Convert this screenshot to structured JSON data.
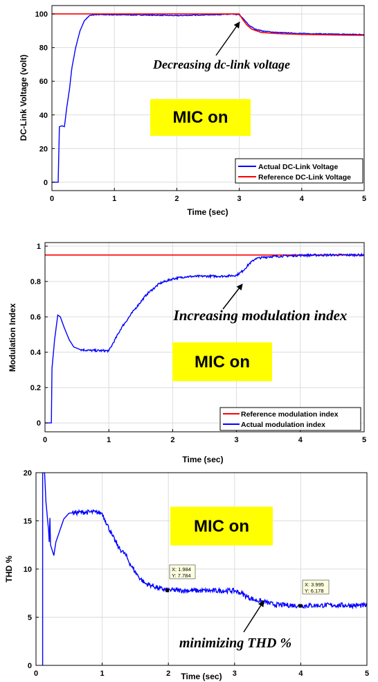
{
  "chart_data": [
    {
      "type": "line",
      "xlabel": "Time (sec)",
      "ylabel": "DC-Link Voltage (volt)",
      "xlim": [
        0,
        5
      ],
      "ylim": [
        -5,
        105
      ],
      "xticks": [
        0,
        1,
        2,
        3,
        4,
        5
      ],
      "yticks": [
        0,
        20,
        40,
        60,
        80,
        100
      ],
      "grid": true,
      "legend_position": "bottom-right",
      "series": [
        {
          "name": "Actual DC-Link Voltage",
          "color": "#0000ff",
          "points": [
            [
              0,
              0
            ],
            [
              0.1,
              0
            ],
            [
              0.12,
              33
            ],
            [
              0.16,
              33.5
            ],
            [
              0.2,
              33
            ],
            [
              0.24,
              45
            ],
            [
              0.28,
              55
            ],
            [
              0.32,
              68
            ],
            [
              0.38,
              80
            ],
            [
              0.45,
              90
            ],
            [
              0.52,
              96
            ],
            [
              0.6,
              99
            ],
            [
              0.7,
              99.6
            ],
            [
              1.0,
              99.5
            ],
            [
              1.5,
              99.4
            ],
            [
              2.0,
              99
            ],
            [
              2.5,
              99.5
            ],
            [
              2.9,
              99.8
            ],
            [
              3.0,
              99.5
            ],
            [
              3.08,
              96.5
            ],
            [
              3.15,
              93.5
            ],
            [
              3.25,
              91
            ],
            [
              3.4,
              89.7
            ],
            [
              3.6,
              89
            ],
            [
              4.0,
              88.4
            ],
            [
              4.5,
              88
            ],
            [
              5.0,
              87.8
            ]
          ]
        },
        {
          "name": "Reference DC-Link Voltage",
          "color": "#ff0000",
          "points": [
            [
              0,
              100
            ],
            [
              3.0,
              100
            ],
            [
              3.05,
              97
            ],
            [
              3.12,
              93.5
            ],
            [
              3.2,
              91
            ],
            [
              3.35,
              89
            ],
            [
              3.6,
              88.3
            ],
            [
              4.0,
              87.8
            ],
            [
              4.5,
              87.5
            ],
            [
              5.0,
              87.3
            ]
          ]
        }
      ],
      "annotations": {
        "arrow_text": "Decreasing dc-link voltage",
        "box_text": "MIC on"
      }
    },
    {
      "type": "line",
      "xlabel": "Time (sec)",
      "ylabel": "Modulation Index",
      "xlim": [
        0,
        5
      ],
      "ylim": [
        -0.05,
        1.02
      ],
      "xticks": [
        0,
        1,
        2,
        3,
        4,
        5
      ],
      "yticks": [
        0,
        0.2,
        0.4,
        0.6,
        0.8,
        1
      ],
      "grid": true,
      "legend_position": "bottom-right",
      "series": [
        {
          "name": "Reference modulation index",
          "color": "#ff0000",
          "points": [
            [
              0,
              0.95
            ],
            [
              5,
              0.95
            ]
          ]
        },
        {
          "name": "Actual modulation index",
          "color": "#0000ff",
          "points": [
            [
              0,
              0
            ],
            [
              0.1,
              0
            ],
            [
              0.11,
              0.31
            ],
            [
              0.15,
              0.47
            ],
            [
              0.2,
              0.61
            ],
            [
              0.24,
              0.6
            ],
            [
              0.3,
              0.54
            ],
            [
              0.38,
              0.47
            ],
            [
              0.45,
              0.43
            ],
            [
              0.55,
              0.415
            ],
            [
              0.7,
              0.41
            ],
            [
              1.0,
              0.408
            ],
            [
              1.05,
              0.44
            ],
            [
              1.2,
              0.54
            ],
            [
              1.4,
              0.64
            ],
            [
              1.6,
              0.73
            ],
            [
              1.8,
              0.79
            ],
            [
              2.0,
              0.815
            ],
            [
              2.2,
              0.827
            ],
            [
              2.5,
              0.83
            ],
            [
              2.8,
              0.83
            ],
            [
              3.0,
              0.835
            ],
            [
              3.1,
              0.86
            ],
            [
              3.2,
              0.9
            ],
            [
              3.3,
              0.93
            ],
            [
              3.5,
              0.94
            ],
            [
              4.0,
              0.948
            ],
            [
              4.5,
              0.95
            ],
            [
              5.0,
              0.95
            ]
          ]
        }
      ],
      "annotations": {
        "arrow_text": "Increasing modulation index",
        "box_text": "MIC on"
      }
    },
    {
      "type": "line",
      "xlabel": "Time (sec)",
      "ylabel": "THD %",
      "xlim": [
        0,
        5
      ],
      "ylim": [
        0,
        20
      ],
      "xticks": [
        0,
        1,
        2,
        3,
        4,
        5
      ],
      "yticks": [
        0,
        5,
        10,
        15,
        20
      ],
      "grid": true,
      "series": [
        {
          "color": "#0000ff",
          "points": [
            [
              0.1,
              0
            ],
            [
              0.1,
              20
            ],
            [
              0.13,
              20
            ],
            [
              0.15,
              17
            ],
            [
              0.19,
              14
            ],
            [
              0.2,
              12.8
            ],
            [
              0.21,
              15.3
            ],
            [
              0.22,
              12.5
            ],
            [
              0.27,
              11.4
            ],
            [
              0.3,
              12.8
            ],
            [
              0.35,
              13.8
            ],
            [
              0.42,
              15.2
            ],
            [
              0.5,
              15.8
            ],
            [
              0.7,
              15.9
            ],
            [
              0.9,
              15.9
            ],
            [
              1.0,
              15.8
            ],
            [
              1.05,
              15
            ],
            [
              1.15,
              13.5
            ],
            [
              1.25,
              12.2
            ],
            [
              1.35,
              11.5
            ],
            [
              1.45,
              10.2
            ],
            [
              1.55,
              9.2
            ],
            [
              1.65,
              8.5
            ],
            [
              1.75,
              8.3
            ],
            [
              1.85,
              8.0
            ],
            [
              2.0,
              7.8
            ],
            [
              2.5,
              7.75
            ],
            [
              3.0,
              7.75
            ],
            [
              3.1,
              7.5
            ],
            [
              3.2,
              7.1
            ],
            [
              3.3,
              6.8
            ],
            [
              3.45,
              6.6
            ],
            [
              3.6,
              6.3
            ],
            [
              4.0,
              6.2
            ],
            [
              4.5,
              6.25
            ],
            [
              5.0,
              6.2
            ]
          ]
        }
      ],
      "annotations": {
        "arrow_text": "minimizing THD %",
        "box_text": "MIC on",
        "datatips": [
          {
            "x_text": "X: 1.984",
            "y_text": "Y: 7.784",
            "x": 1.984,
            "y": 7.784
          },
          {
            "x_text": "X: 3.995",
            "y_text": "Y: 6.178",
            "x": 3.995,
            "y": 6.178
          }
        ]
      }
    }
  ],
  "colors": {
    "mic_box": "#ffff00",
    "actual": "#0000ff",
    "reference": "#ff0000"
  }
}
